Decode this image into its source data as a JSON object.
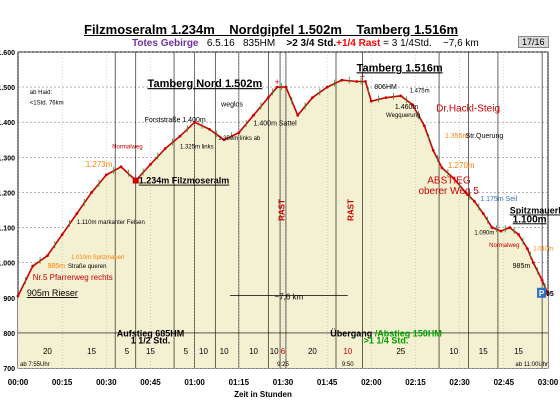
{
  "header": {
    "title1": "Filzmoseralm 1.234m",
    "title2": "Nordgipfel 1.502m",
    "title3": "Tamberg 1.516m",
    "sub_a": "Totes Gebirge",
    "sub_b": "6.5.16",
    "sub_c": "835HM",
    "sub_d": ">2 3/4 Std.",
    "sub_e": "+1/4 Rast",
    "sub_f": "= 3 1/4Std.",
    "sub_g": "~7,6 km",
    "page": "17/16",
    "colors": {
      "sub_a": "#7030a0",
      "sub_e": "#ff0000",
      "sub_f": "#000000"
    }
  },
  "chart_data": {
    "type": "area",
    "xlabel": "Zeit in  Stunden",
    "ylabel": "",
    "ylim": [
      700,
      1600
    ],
    "xlim": [
      0,
      180
    ],
    "y_ticks": [
      "700",
      "800",
      "900",
      "1.000",
      "1.100",
      "1.200",
      "1.300",
      "1.400",
      "1.500",
      "1.600"
    ],
    "y_tick_values": [
      700,
      800,
      900,
      1000,
      1100,
      1200,
      1300,
      1400,
      1500,
      1600
    ],
    "x_ticks": [
      "00:00",
      "00:15",
      "00:30",
      "00:45",
      "01:00",
      "01:15",
      "01:30",
      "01:45",
      "02:00",
      "02:15",
      "02:30",
      "02:45",
      "03:00"
    ],
    "x_tick_values": [
      0,
      15,
      30,
      45,
      60,
      75,
      90,
      105,
      120,
      135,
      150,
      165,
      180
    ],
    "grid": true,
    "profile": {
      "x": [
        0,
        5,
        10,
        15,
        20,
        25,
        30,
        35,
        40,
        45,
        50,
        55,
        60,
        65,
        70,
        75,
        80,
        85,
        88,
        91,
        95,
        100,
        105,
        110,
        115,
        118,
        120,
        125,
        130,
        134,
        138,
        141,
        144,
        148,
        152,
        155,
        158,
        161,
        164,
        167,
        170,
        173,
        175,
        178,
        180
      ],
      "y": [
        905,
        990,
        1020,
        1080,
        1140,
        1200,
        1250,
        1273,
        1234,
        1280,
        1325,
        1360,
        1400,
        1380,
        1350,
        1370,
        1420,
        1470,
        1500,
        1500,
        1420,
        1470,
        1500,
        1520,
        1516,
        1516,
        1460,
        1470,
        1475,
        1450,
        1390,
        1320,
        1270,
        1240,
        1200,
        1175,
        1140,
        1100,
        1090,
        1100,
        1080,
        1040,
        1000,
        950,
        910
      ]
    },
    "timestamps": [
      {
        "x": 0,
        "label": "ab 7:55Uhr"
      },
      {
        "x": 90,
        "label": "9:25"
      },
      {
        "x": 112,
        "label": "9:50"
      },
      {
        "x": 180,
        "label": "ab 11:00Uhr"
      }
    ],
    "interval_labels": [
      {
        "x": 10,
        "label": "20"
      },
      {
        "x": 25,
        "label": "15"
      },
      {
        "x": 37,
        "label": "5"
      },
      {
        "x": 45,
        "label": "15"
      },
      {
        "x": 57,
        "label": "5"
      },
      {
        "x": 63,
        "label": "10"
      },
      {
        "x": 70,
        "label": "10"
      },
      {
        "x": 80,
        "label": "10"
      },
      {
        "x": 87,
        "label": "10"
      },
      {
        "x": 90,
        "label": "6"
      },
      {
        "x": 100,
        "label": "20"
      },
      {
        "x": 112,
        "label": "10"
      },
      {
        "x": 130,
        "label": "25"
      },
      {
        "x": 148,
        "label": "10"
      },
      {
        "x": 158,
        "label": "15"
      },
      {
        "x": 170,
        "label": "15"
      }
    ],
    "interval_separators": [
      33,
      40,
      53,
      60,
      67,
      75,
      85,
      89,
      91,
      108,
      117,
      143,
      153,
      163,
      178
    ],
    "annotations": [
      {
        "x": 4,
        "y": 1480,
        "text": "ab Haid:",
        "color": "#000000",
        "size": 6
      },
      {
        "x": 4,
        "y": 1450,
        "text": "<1Std.   76km",
        "color": "#000000",
        "size": 6
      },
      {
        "x": 44,
        "y": 1500,
        "text": "Tamberg Nord 1.502m",
        "color": "#000000",
        "size": 11,
        "bold": true,
        "underline": true
      },
      {
        "x": 115,
        "y": 1545,
        "text": "Tamberg 1.516m",
        "color": "#000000",
        "size": 11,
        "bold": true,
        "underline": true
      },
      {
        "x": 43,
        "y": 1400,
        "text": "Forststraße 1.400m",
        "color": "#000000",
        "size": 7
      },
      {
        "x": 69,
        "y": 1445,
        "text": "weglos",
        "color": "#000000",
        "size": 7
      },
      {
        "x": 80,
        "y": 1390,
        "text": "1.400m Sattel",
        "color": "#000000",
        "size": 7
      },
      {
        "x": 121,
        "y": 1495,
        "text": "806HM",
        "color": "#000000",
        "size": 7
      },
      {
        "x": 133,
        "y": 1485,
        "text": "1.475m",
        "color": "#000000",
        "size": 6
      },
      {
        "x": 128,
        "y": 1438,
        "text": "1.460m",
        "color": "#000000",
        "size": 7
      },
      {
        "x": 125,
        "y": 1415,
        "text": "Wegquerung",
        "color": "#000000",
        "size": 6
      },
      {
        "x": 142,
        "y": 1430,
        "text": "Dr.Hackl-Steig",
        "color": "#cc0000",
        "size": 10
      },
      {
        "x": 145,
        "y": 1355,
        "text": "1.355m",
        "color": "#ff8000",
        "size": 7
      },
      {
        "x": 152,
        "y": 1355,
        "text": "Str.Querung",
        "color": "#000000",
        "size": 7
      },
      {
        "x": 55,
        "y": 1325,
        "text": "1.325m links",
        "color": "#000000",
        "size": 6
      },
      {
        "x": 68,
        "y": 1350,
        "text": "1.350m links ab",
        "color": "#000000",
        "size": 6
      },
      {
        "x": 32,
        "y": 1325,
        "text": "Normalweg",
        "color": "#cc0000",
        "size": 6
      },
      {
        "x": 23,
        "y": 1273,
        "text": "1.273m",
        "color": "#ff8000",
        "size": 8
      },
      {
        "x": 41,
        "y": 1225,
        "text": "1.234m Filzmoseralm",
        "color": "#000000",
        "size": 9,
        "bold": true,
        "underline": true
      },
      {
        "x": 146,
        "y": 1270,
        "text": "1.270m",
        "color": "#ff8000",
        "size": 8
      },
      {
        "x": 139,
        "y": 1225,
        "text": "ABSTIEG",
        "color": "#cc0000",
        "size": 10
      },
      {
        "x": 136,
        "y": 1195,
        "text": "oberer Weg 5",
        "color": "#cc0000",
        "size": 10
      },
      {
        "x": 157,
        "y": 1175,
        "text": "1.175m Seil",
        "color": "#3070c0",
        "size": 7
      },
      {
        "x": 167,
        "y": 1140,
        "text": "Spitzmauerl",
        "color": "#000000",
        "size": 9,
        "bold": true,
        "underline": true
      },
      {
        "x": 168,
        "y": 1115,
        "text": "1.100m",
        "color": "#000000",
        "size": 10,
        "bold": true,
        "underline": true
      },
      {
        "x": 155,
        "y": 1080,
        "text": "1.090m",
        "color": "#000000",
        "size": 6
      },
      {
        "x": 20,
        "y": 1110,
        "text": "1.110m markanter Felsen",
        "color": "#000000",
        "size": 6
      },
      {
        "x": 18,
        "y": 1010,
        "text": "1.010m Spitzmauerl",
        "color": "#ff8000",
        "size": 6
      },
      {
        "x": 10,
        "y": 985,
        "text": "985m",
        "color": "#ff8000",
        "size": 7
      },
      {
        "x": 17,
        "y": 985,
        "text": "Straße queren",
        "color": "#000000",
        "size": 6
      },
      {
        "x": 5,
        "y": 950,
        "text": "Nr.5 Pfarrerweg rechts",
        "color": "#cc0000",
        "size": 8
      },
      {
        "x": 3,
        "y": 905,
        "text": "905m Rieser",
        "color": "#000000",
        "size": 9,
        "underline": true
      },
      {
        "x": 160,
        "y": 1045,
        "text": "Normalweg",
        "color": "#cc0000",
        "size": 6
      },
      {
        "x": 175,
        "y": 1035,
        "text": "1.010m",
        "color": "#ff8000",
        "size": 6
      },
      {
        "x": 168,
        "y": 985,
        "text": "985m",
        "color": "#000000",
        "size": 7
      },
      {
        "x": 178,
        "y": 905,
        "text": "905",
        "color": "#000000",
        "size": 7,
        "bold": true
      }
    ],
    "rast_labels": [
      {
        "x": 89.5,
        "y": 1150,
        "text": "RAST"
      },
      {
        "x": 113,
        "y": 1150,
        "text": "RAST"
      }
    ],
    "span_top": {
      "text": "~7,6 km",
      "x1": 72,
      "x2": 112,
      "y": 895
    },
    "phase_labels": [
      {
        "x": 45,
        "y": 790,
        "text": "Aufstieg 685HM",
        "color": "#000000"
      },
      {
        "x": 45,
        "y": 770,
        "text": "1 1/2 Std.",
        "color": "#000000"
      },
      {
        "x": 125,
        "y": 790,
        "text": "Übergang /Abstieg 150HM",
        "color": "#00a000",
        "prefix": "Übergang ",
        "prefix_color": "#000000"
      },
      {
        "x": 125,
        "y": 770,
        "text": ">1 1/4 Std.",
        "color": "#00a000"
      }
    ],
    "marker_P": {
      "x": 179,
      "y": 900,
      "text": "P"
    },
    "series_color": "#cc0000",
    "fill_color": "#f4f0d2"
  }
}
